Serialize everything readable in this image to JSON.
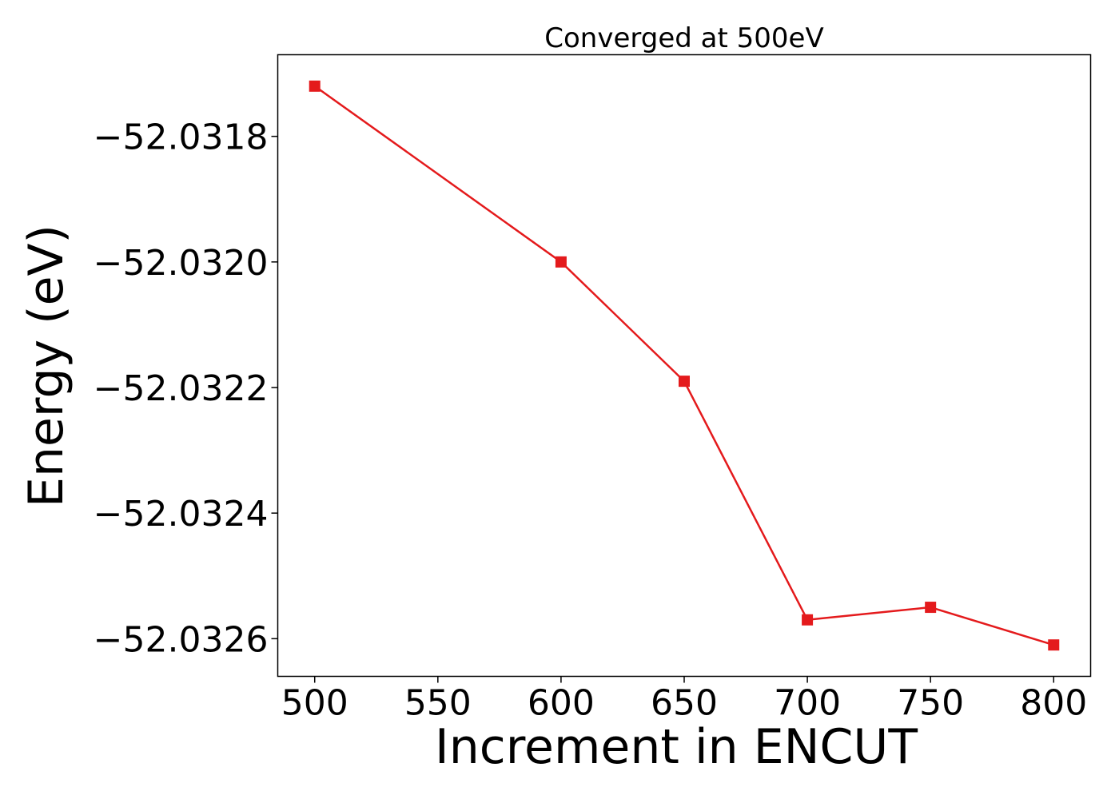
{
  "chart_data": {
    "type": "line",
    "title": "Converged at 500eV",
    "xlabel": "Increment in ENCUT",
    "ylabel": "Energy (eV)",
    "xlim": [
      485,
      815
    ],
    "ylim": [
      -52.03266,
      -52.03167
    ],
    "x_ticks": [
      500,
      550,
      600,
      650,
      700,
      750,
      800
    ],
    "x_tick_labels": [
      "500",
      "550",
      "600",
      "650",
      "700",
      "750",
      "800"
    ],
    "y_ticks": [
      -52.0318,
      -52.032,
      -52.0322,
      -52.0324,
      -52.0326
    ],
    "y_tick_labels": [
      "−52.0318",
      "−52.0320",
      "−52.0322",
      "−52.0324",
      "−52.0326"
    ],
    "grid": false,
    "series": [
      {
        "color": "#e41a1c",
        "marker": "square",
        "x": [
          500,
          600,
          650,
          700,
          750,
          800
        ],
        "y": [
          -52.03172,
          -52.032,
          -52.03219,
          -52.03257,
          -52.03255,
          -52.03261
        ]
      }
    ]
  }
}
